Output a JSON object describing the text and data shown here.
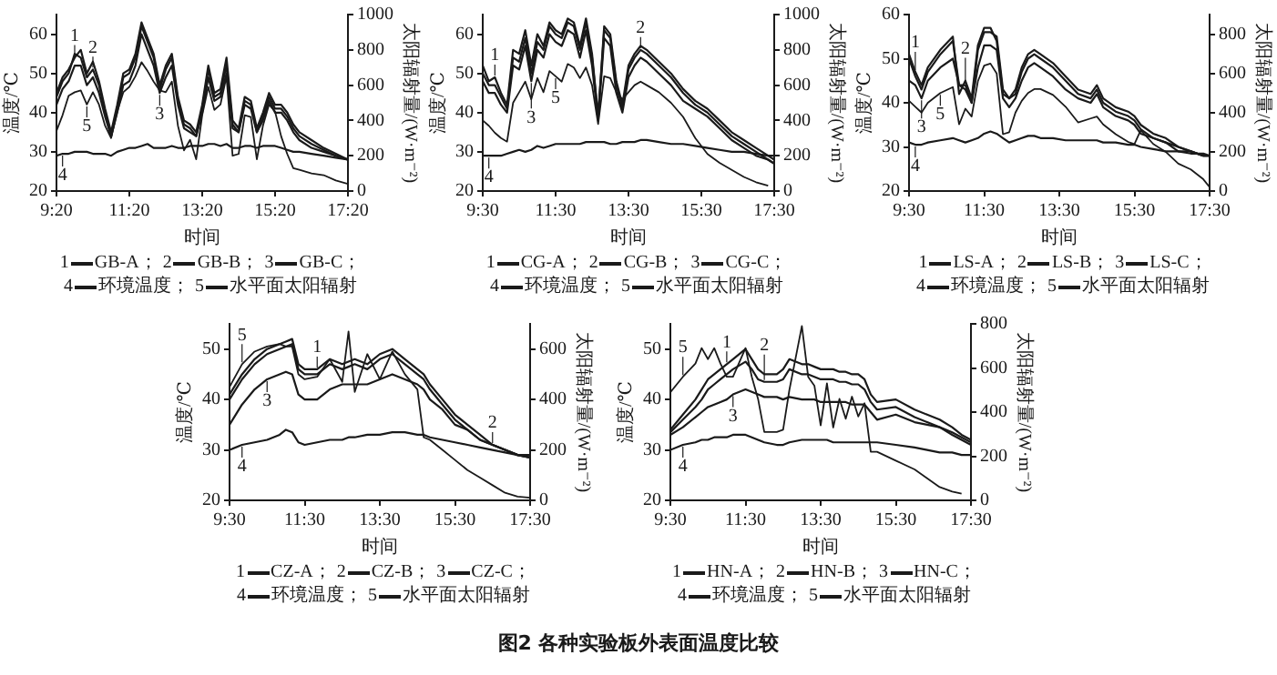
{
  "chart_data": [
    {
      "type": "line",
      "xlabel": "时间",
      "ylabel": "温度/℃",
      "y2label": "太阳辐射量/(W·m⁻²)",
      "xlim": [
        9.333,
        17.333
      ],
      "xticks": [
        {
          "value": 9.333,
          "label": "9:20"
        },
        {
          "value": 11.333,
          "label": "11:20"
        },
        {
          "value": 13.333,
          "label": "13:20"
        },
        {
          "value": 15.333,
          "label": "15:20"
        },
        {
          "value": 17.333,
          "label": "17:20"
        }
      ],
      "ylim": [
        20,
        65
      ],
      "yticks": [
        20,
        30,
        40,
        50,
        60
      ],
      "y2lim": [
        0,
        1000
      ],
      "y2ticks": [
        0,
        200,
        400,
        600,
        800,
        1000
      ],
      "legend": "bottom",
      "x": [
        9.333,
        9.5,
        9.667,
        9.833,
        10.0,
        10.167,
        10.333,
        10.5,
        10.667,
        10.833,
        11.0,
        11.167,
        11.333,
        11.5,
        11.667,
        11.833,
        12.0,
        12.167,
        12.333,
        12.5,
        12.667,
        12.833,
        13.0,
        13.167,
        13.333,
        13.5,
        13.667,
        13.833,
        14.0,
        14.167,
        14.333,
        14.5,
        14.667,
        14.833,
        15.0,
        15.167,
        15.333,
        15.5,
        15.667,
        15.833,
        16.0,
        16.333,
        16.667,
        17.0,
        17.333
      ],
      "series": [
        {
          "name": "GB-A；",
          "color": "#1a1a1a",
          "values": [
            45,
            49,
            51,
            54,
            56,
            50,
            53,
            48,
            41,
            35,
            42,
            50,
            51,
            55,
            63,
            59,
            55,
            47,
            52,
            55,
            44,
            38,
            37,
            35,
            42,
            52,
            45,
            46,
            54,
            38,
            36,
            44,
            43,
            36,
            40,
            45,
            42,
            42,
            40,
            37,
            35,
            33,
            31,
            29.5,
            28
          ]
        },
        {
          "name": "GB-B；",
          "color": "#1a1a1a",
          "values": [
            44,
            48,
            50,
            55,
            54,
            49,
            51,
            47,
            40,
            34,
            41,
            49,
            50,
            54,
            62,
            58,
            54,
            46,
            51,
            54,
            43,
            37,
            36,
            34,
            41,
            51,
            44,
            45,
            52,
            37,
            35,
            43,
            42,
            35,
            39,
            44,
            41,
            41,
            39,
            36,
            34,
            32,
            30.5,
            29,
            28
          ]
        },
        {
          "name": "GB-C；",
          "color": "#1a1a1a",
          "values": [
            42,
            46,
            48,
            52,
            52,
            47,
            49,
            45,
            39,
            34,
            40,
            47,
            48,
            52,
            60,
            56,
            52,
            45,
            49,
            52,
            42,
            36,
            35,
            34,
            40,
            49,
            43,
            44,
            50,
            36,
            35,
            42,
            41,
            35,
            38,
            43,
            40,
            40,
            38,
            35,
            33,
            31,
            30,
            29,
            28
          ]
        },
        {
          "name": "环境温度；",
          "color": "#1a1a1a",
          "values": [
            29,
            29.5,
            29.5,
            30,
            30,
            30,
            29.5,
            29.5,
            29.5,
            29,
            30,
            30.5,
            31,
            31,
            31.5,
            32,
            31,
            31,
            31,
            31.5,
            31,
            31,
            31.5,
            31.5,
            31.5,
            32,
            32,
            31.5,
            32,
            31,
            31,
            31.5,
            31.5,
            31,
            31.5,
            31.5,
            31.5,
            31,
            30.5,
            30,
            30,
            29.5,
            29,
            28.5,
            28
          ]
        },
        {
          "name": "水平面太阳辐射",
          "color": "#1a1a1a",
          "axis": "y2",
          "values": [
            340,
            430,
            540,
            560,
            570,
            490,
            560,
            490,
            370,
            300,
            450,
            560,
            590,
            650,
            730,
            680,
            620,
            570,
            560,
            620,
            370,
            230,
            290,
            180,
            430,
            590,
            460,
            490,
            650,
            200,
            210,
            430,
            420,
            180,
            370,
            490,
            450,
            310,
            210,
            130,
            120,
            100,
            90,
            60,
            40
          ]
        }
      ],
      "annotations": [
        "1",
        "2",
        "3",
        "4",
        "5"
      ]
    },
    {
      "type": "line",
      "xlabel": "时间",
      "ylabel": "温度/℃",
      "y2label": "太阳辐射量/(W·m⁻²)",
      "xlim": [
        9.5,
        17.5
      ],
      "xticks": [
        {
          "value": 9.5,
          "label": "9:30"
        },
        {
          "value": 11.5,
          "label": "11:30"
        },
        {
          "value": 13.5,
          "label": "13:30"
        },
        {
          "value": 15.5,
          "label": "15:30"
        },
        {
          "value": 17.5,
          "label": "17:30"
        }
      ],
      "ylim": [
        20,
        65
      ],
      "yticks": [
        20,
        30,
        40,
        50,
        60
      ],
      "y2lim": [
        0,
        1000
      ],
      "y2ticks": [
        0,
        200,
        400,
        600,
        800,
        1000
      ],
      "legend": "bottom",
      "x": [
        9.5,
        9.667,
        9.833,
        10.0,
        10.167,
        10.333,
        10.5,
        10.667,
        10.833,
        11.0,
        11.167,
        11.333,
        11.5,
        11.667,
        11.833,
        12.0,
        12.167,
        12.333,
        12.5,
        12.667,
        12.833,
        13.0,
        13.167,
        13.333,
        13.5,
        13.667,
        13.833,
        14.0,
        14.333,
        14.667,
        15.0,
        15.333,
        15.667,
        16.0,
        16.333,
        16.667,
        17.0,
        17.333,
        17.5
      ],
      "series": [
        {
          "name": "CG-A；",
          "color": "#1a1a1a",
          "values": [
            52,
            48,
            49,
            45,
            42,
            56,
            55,
            61,
            52,
            60,
            57,
            63,
            61,
            60,
            64,
            63,
            57,
            64,
            55,
            39,
            62,
            60,
            48,
            42,
            52,
            55,
            57,
            56,
            53,
            50,
            46,
            43,
            41,
            38,
            35,
            33,
            31,
            29,
            28
          ]
        },
        {
          "name": "CG-B；",
          "color": "#1a1a1a",
          "values": [
            50,
            47,
            47,
            44,
            41,
            54,
            53,
            59,
            50,
            58,
            56,
            62,
            60,
            59,
            63,
            62,
            56,
            63,
            54,
            39,
            61,
            59,
            47,
            41,
            51,
            54,
            56,
            55,
            52,
            49,
            45,
            42,
            40,
            37,
            34,
            32,
            30,
            28,
            27
          ]
        },
        {
          "name": "CG-C；",
          "color": "#1a1a1a",
          "values": [
            48,
            45,
            45,
            42,
            40,
            52,
            51,
            57,
            48,
            56,
            54,
            60,
            58,
            57,
            61,
            60,
            54,
            61,
            52,
            38,
            59,
            57,
            45,
            40,
            49,
            52,
            54,
            53,
            50,
            47,
            43,
            41,
            39,
            36,
            33,
            31,
            29,
            28,
            27
          ]
        },
        {
          "name": "环境温度；",
          "color": "#1a1a1a",
          "values": [
            29,
            29,
            29,
            29,
            29.5,
            30,
            30.5,
            30,
            30.5,
            31.5,
            31,
            31.5,
            32,
            32,
            32,
            32,
            32,
            32.5,
            32.5,
            32.5,
            32.5,
            32,
            32,
            32.5,
            32.5,
            32.5,
            33,
            33,
            32.5,
            32,
            32,
            31.5,
            31,
            30.5,
            30,
            30,
            29.5,
            29,
            29
          ]
        },
        {
          "name": "水平面太阳辐射",
          "color": "#1a1a1a",
          "axis": "y2",
          "values": [
            400,
            370,
            330,
            300,
            280,
            500,
            560,
            620,
            520,
            640,
            560,
            680,
            650,
            620,
            720,
            700,
            640,
            700,
            600,
            380,
            650,
            640,
            560,
            520,
            560,
            600,
            620,
            600,
            560,
            500,
            420,
            300,
            210,
            160,
            120,
            80,
            50,
            30,
            null
          ]
        }
      ],
      "annotations": [
        "1",
        "2",
        "3",
        "4",
        "5"
      ]
    },
    {
      "type": "line",
      "xlabel": "时间",
      "ylabel": "温度/℃",
      "y2label": "太阳辐射量/(W·m⁻²)",
      "xlim": [
        9.5,
        17.5
      ],
      "xticks": [
        {
          "value": 9.5,
          "label": "9:30"
        },
        {
          "value": 11.5,
          "label": "11:30"
        },
        {
          "value": 13.5,
          "label": "13:30"
        },
        {
          "value": 15.5,
          "label": "15:30"
        },
        {
          "value": 17.5,
          "label": "17:30"
        }
      ],
      "ylim": [
        20,
        60
      ],
      "yticks": [
        20,
        30,
        40,
        50,
        60
      ],
      "y2lim": [
        0,
        900
      ],
      "y2ticks": [
        0,
        200,
        400,
        600,
        800
      ],
      "legend": "bottom",
      "x": [
        9.5,
        9.667,
        9.833,
        10.0,
        10.333,
        10.667,
        10.833,
        11.0,
        11.167,
        11.333,
        11.5,
        11.667,
        11.833,
        12.0,
        12.167,
        12.333,
        12.5,
        12.667,
        12.833,
        13.0,
        13.333,
        13.667,
        14.0,
        14.333,
        14.5,
        14.667,
        15.0,
        15.333,
        15.5,
        15.667,
        16.0,
        16.333,
        16.667,
        17.0,
        17.333,
        17.5
      ],
      "series": [
        {
          "name": "LS-A；",
          "color": "#1a1a1a",
          "values": [
            51,
            47,
            44,
            48,
            52,
            55,
            42,
            45,
            41,
            53,
            57,
            57,
            54,
            42,
            41,
            43,
            48,
            51,
            52,
            51,
            49,
            46,
            43,
            42,
            44,
            41,
            39,
            38,
            37,
            35,
            33,
            32,
            30,
            29,
            28,
            28
          ]
        },
        {
          "name": "LS-B；",
          "color": "#1a1a1a",
          "values": [
            50,
            46,
            43,
            47,
            51,
            54,
            44,
            44,
            40,
            52,
            56,
            56,
            55,
            43,
            41,
            42,
            47,
            50,
            51,
            50,
            48,
            45,
            42,
            41,
            43,
            40,
            38,
            37,
            36,
            34,
            32,
            31,
            30,
            29,
            28,
            28
          ]
        },
        {
          "name": "LS-C；",
          "color": "#1a1a1a",
          "values": [
            45,
            44,
            41,
            45,
            48,
            50,
            44,
            43,
            40,
            48,
            53,
            53,
            52,
            41,
            39,
            41,
            45,
            48,
            49,
            48,
            46,
            43,
            41,
            40,
            42,
            39,
            37,
            36,
            35,
            33,
            32,
            31,
            29,
            29,
            28,
            28
          ]
        },
        {
          "name": "环境温度；",
          "color": "#1a1a1a",
          "values": [
            31,
            30.5,
            30.5,
            31,
            31.5,
            32,
            31.5,
            31,
            31.5,
            32,
            33,
            33.5,
            33,
            32,
            31,
            31.5,
            32,
            32.5,
            32.5,
            32,
            32,
            31.5,
            31.5,
            31.5,
            31.5,
            31,
            31,
            30.5,
            30.5,
            30,
            29.5,
            29,
            29,
            28.5,
            28.5,
            28
          ]
        },
        {
          "name": "水平面太阳辐射",
          "color": "#1a1a1a",
          "axis": "y2",
          "values": [
            460,
            430,
            400,
            450,
            500,
            530,
            340,
            420,
            380,
            560,
            640,
            650,
            600,
            290,
            300,
            400,
            460,
            500,
            520,
            520,
            490,
            430,
            350,
            370,
            380,
            340,
            290,
            250,
            240,
            310,
            240,
            200,
            140,
            110,
            60,
            20
          ]
        }
      ],
      "annotations": [
        "1",
        "2",
        "3",
        "4",
        "5"
      ]
    },
    {
      "type": "line",
      "xlabel": "时间",
      "ylabel": "温度/℃",
      "y2label": "太阳辐射量/(W·m⁻²)",
      "xlim": [
        9.5,
        17.5
      ],
      "xticks": [
        {
          "value": 9.5,
          "label": "9:30"
        },
        {
          "value": 11.5,
          "label": "11:30"
        },
        {
          "value": 13.5,
          "label": "13:30"
        },
        {
          "value": 15.5,
          "label": "15:30"
        },
        {
          "value": 17.5,
          "label": "17:30"
        }
      ],
      "ylim": [
        20,
        55
      ],
      "yticks": [
        20,
        30,
        40,
        50
      ],
      "y2lim": [
        0,
        700
      ],
      "y2ticks": [
        0,
        200,
        400,
        600
      ],
      "legend": "bottom",
      "x": [
        9.5,
        9.833,
        10.167,
        10.5,
        10.833,
        11.0,
        11.167,
        11.333,
        11.5,
        11.833,
        12.167,
        12.5,
        12.667,
        12.833,
        13.167,
        13.5,
        13.833,
        14.167,
        14.5,
        14.667,
        14.833,
        15.167,
        15.5,
        15.833,
        16.167,
        16.5,
        16.833,
        17.167,
        17.5
      ],
      "series": [
        {
          "name": "CZ-A；",
          "color": "#1a1a1a",
          "values": [
            41,
            45,
            48,
            50,
            51,
            51.5,
            52,
            47,
            46,
            46,
            48,
            47,
            47.5,
            48,
            47,
            49,
            50,
            48,
            46,
            45,
            43,
            40,
            37,
            35,
            33,
            31,
            30,
            29,
            28.5
          ]
        },
        {
          "name": "CZ-B；",
          "color": "#1a1a1a",
          "values": [
            40,
            44,
            47,
            49,
            50,
            50.5,
            51,
            46,
            45,
            45,
            47,
            46,
            46.5,
            47,
            46,
            48,
            49,
            47,
            45,
            44,
            42,
            39,
            36,
            34,
            32,
            31,
            30,
            29,
            28.5
          ]
        },
        {
          "name": "CZ-C；",
          "color": "#1a1a1a",
          "values": [
            35,
            39,
            42,
            44,
            45,
            45.5,
            45,
            41,
            40,
            40,
            42,
            43,
            43,
            43,
            43,
            44,
            45,
            44,
            43,
            42,
            40,
            38,
            35,
            34,
            32,
            31,
            30,
            29,
            28.5
          ]
        },
        {
          "name": "环境温度；",
          "color": "#1a1a1a",
          "values": [
            30,
            31,
            31.5,
            32,
            33,
            34,
            33.5,
            31.5,
            31,
            31.5,
            32,
            32,
            32.5,
            32.5,
            33,
            33,
            33.5,
            33.5,
            33,
            33,
            32.5,
            32,
            31.5,
            31,
            30.5,
            30,
            29.5,
            29,
            29
          ]
        },
        {
          "name": "水平面太阳辐射",
          "color": "#1a1a1a",
          "axis": "y2",
          "values": [
            450,
            540,
            590,
            610,
            620,
            610,
            610,
            500,
            480,
            490,
            560,
            470,
            670,
            430,
            580,
            480,
            590,
            500,
            440,
            250,
            240,
            200,
            160,
            120,
            90,
            60,
            30,
            15,
            10
          ]
        }
      ],
      "annotations": [
        "1",
        "2",
        "3",
        "4",
        "5"
      ]
    },
    {
      "type": "line",
      "xlabel": "时间",
      "ylabel": "温度/℃",
      "y2label": "太阳辐射量/(W·m⁻²)",
      "xlim": [
        9.5,
        17.5
      ],
      "xticks": [
        {
          "value": 9.5,
          "label": "9:30"
        },
        {
          "value": 11.5,
          "label": "11:30"
        },
        {
          "value": 13.5,
          "label": "13:30"
        },
        {
          "value": 15.5,
          "label": "15:30"
        },
        {
          "value": 17.5,
          "label": "17:30"
        }
      ],
      "ylim": [
        20,
        55
      ],
      "yticks": [
        20,
        30,
        40,
        50
      ],
      "y2lim": [
        0,
        800
      ],
      "y2ticks": [
        0,
        200,
        400,
        600,
        800
      ],
      "legend": "bottom",
      "x": [
        9.5,
        9.833,
        10.167,
        10.333,
        10.5,
        10.667,
        10.833,
        11.0,
        11.167,
        11.5,
        11.667,
        11.833,
        12.0,
        12.333,
        12.5,
        12.667,
        13.0,
        13.167,
        13.333,
        13.5,
        13.667,
        13.833,
        14.0,
        14.167,
        14.333,
        14.5,
        14.667,
        14.833,
        15.0,
        15.5,
        16.0,
        16.333,
        16.667,
        17.0,
        17.25,
        17.5
      ],
      "series": [
        {
          "name": "HN-A；",
          "color": "#1a1a1a",
          "values": [
            34,
            37,
            40,
            42,
            44,
            45,
            46,
            47,
            48,
            50,
            48,
            46,
            45,
            45,
            46,
            48,
            47,
            47,
            46.5,
            46,
            46,
            46,
            45.5,
            45.5,
            45,
            45,
            44,
            41,
            39.5,
            40,
            38,
            37,
            36,
            34.5,
            33,
            32
          ]
        },
        {
          "name": "HN-B；",
          "color": "#1a1a1a",
          "values": [
            33.5,
            36,
            38.5,
            40,
            42,
            43,
            44,
            45,
            46,
            47.5,
            46,
            44,
            43.5,
            43.5,
            44,
            46,
            45,
            45,
            44.5,
            44,
            44,
            44,
            43.5,
            43.5,
            43,
            43,
            42,
            39.5,
            38,
            38.5,
            36.5,
            35.5,
            34.5,
            33.5,
            32.5,
            31.5
          ]
        },
        {
          "name": "HN-C；",
          "color": "#1a1a1a",
          "values": [
            33,
            34.5,
            36.5,
            37.5,
            38.5,
            39,
            39.5,
            40,
            41,
            42,
            41.5,
            41,
            40.5,
            40.5,
            40,
            40.5,
            40,
            40,
            40,
            39.5,
            39.5,
            39.5,
            39.5,
            39.5,
            39,
            39,
            39,
            37.5,
            36,
            37,
            35.5,
            35,
            34.5,
            33,
            32,
            31
          ]
        },
        {
          "name": "环境温度；",
          "color": "#1a1a1a",
          "values": [
            30,
            31,
            31.5,
            32,
            32,
            32.5,
            32.5,
            32.5,
            33,
            33,
            32.5,
            32,
            31.5,
            31,
            31,
            31.5,
            32,
            32,
            32,
            32,
            32,
            31.5,
            31.5,
            31.5,
            31.5,
            31.5,
            31.5,
            31.5,
            31.5,
            31,
            30.5,
            30,
            29.5,
            29.5,
            29,
            29
          ]
        },
        {
          "name": "水平面太阳辐射",
          "color": "#1a1a1a",
          "axis": "y2",
          "values": [
            490,
            560,
            620,
            690,
            640,
            690,
            620,
            560,
            560,
            690,
            560,
            460,
            310,
            310,
            320,
            500,
            790,
            560,
            520,
            340,
            530,
            330,
            460,
            370,
            470,
            380,
            440,
            220,
            220,
            180,
            140,
            100,
            60,
            40,
            30,
            null
          ]
        }
      ],
      "annotations": [
        "1",
        "2",
        "3",
        "4",
        "5"
      ]
    },
    {
      "type": "other",
      "title": "图2  各种实验板外表面温度比较"
    }
  ]
}
